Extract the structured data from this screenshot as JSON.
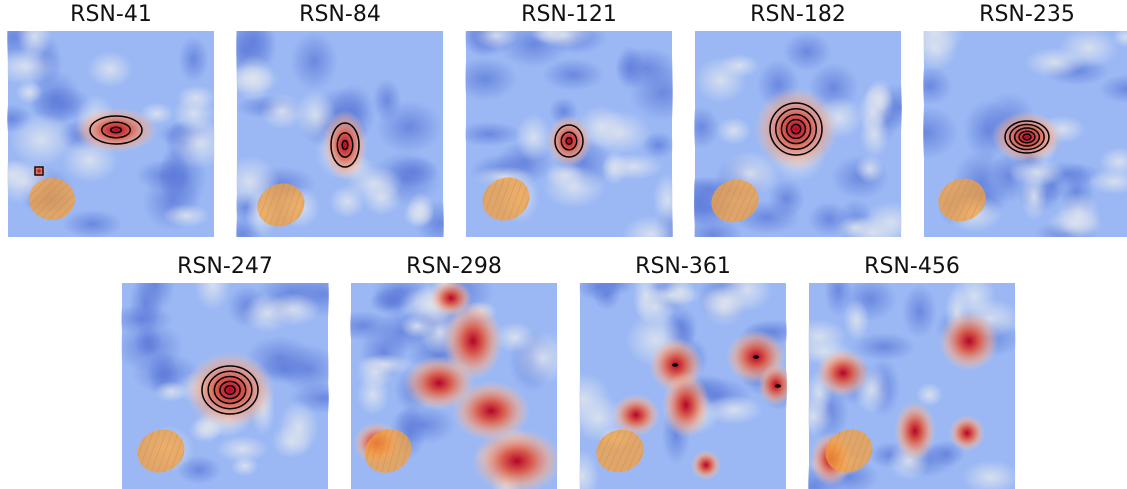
{
  "panels": [
    {
      "id": "rsn-41",
      "title": "RSN-41",
      "has_contours": true
    },
    {
      "id": "rsn-84",
      "title": "RSN-84",
      "has_contours": true
    },
    {
      "id": "rsn-121",
      "title": "RSN-121",
      "has_contours": true
    },
    {
      "id": "rsn-182",
      "title": "RSN-182",
      "has_contours": true
    },
    {
      "id": "rsn-235",
      "title": "RSN-235",
      "has_contours": true
    },
    {
      "id": "rsn-247",
      "title": "RSN-247",
      "has_contours": true
    },
    {
      "id": "rsn-298",
      "title": "RSN-298",
      "has_contours": false
    },
    {
      "id": "rsn-361",
      "title": "RSN-361",
      "has_contours": false
    },
    {
      "id": "rsn-456",
      "title": "RSN-456",
      "has_contours": false
    }
  ],
  "colors": {
    "background_blue": "#9bb8f4",
    "peak_red": "#b40426",
    "contour": "#000000",
    "beam_fill": "#f4a040"
  }
}
